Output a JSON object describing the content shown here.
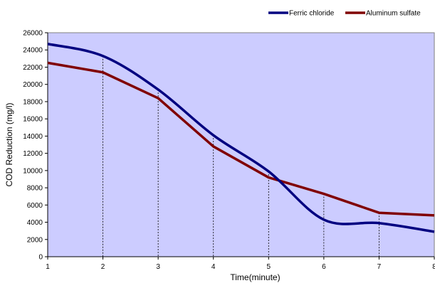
{
  "chart_data": {
    "type": "line",
    "title": "",
    "xlabel": "Time(minute)",
    "ylabel": "COD Reduction (mg/l)",
    "x": [
      1,
      2,
      3,
      4,
      5,
      6,
      7,
      8
    ],
    "xlim": [
      1,
      8
    ],
    "ylim": [
      0,
      26000
    ],
    "x_ticks": [
      "1",
      "2",
      "3",
      "4",
      "5",
      "6",
      "7",
      "8"
    ],
    "y_ticks": [
      "0",
      "2000",
      "4000",
      "6000",
      "8000",
      "10000",
      "12000",
      "14000",
      "16000",
      "18000",
      "20000",
      "22000",
      "24000",
      "26000"
    ],
    "grid": "vertical dashed drop lines at each x",
    "legend_position": "top-right",
    "plot_background": "#ccccff",
    "series": [
      {
        "name": "Ferric chloride",
        "color": "#000080",
        "smooth": true,
        "values": [
          24700,
          23300,
          19400,
          14100,
          9900,
          4300,
          3900,
          2900
        ]
      },
      {
        "name": "Aluminum sulfate",
        "color": "#800000",
        "smooth": false,
        "values": [
          22500,
          21400,
          18400,
          12800,
          9200,
          7300,
          5100,
          4800
        ]
      }
    ]
  }
}
